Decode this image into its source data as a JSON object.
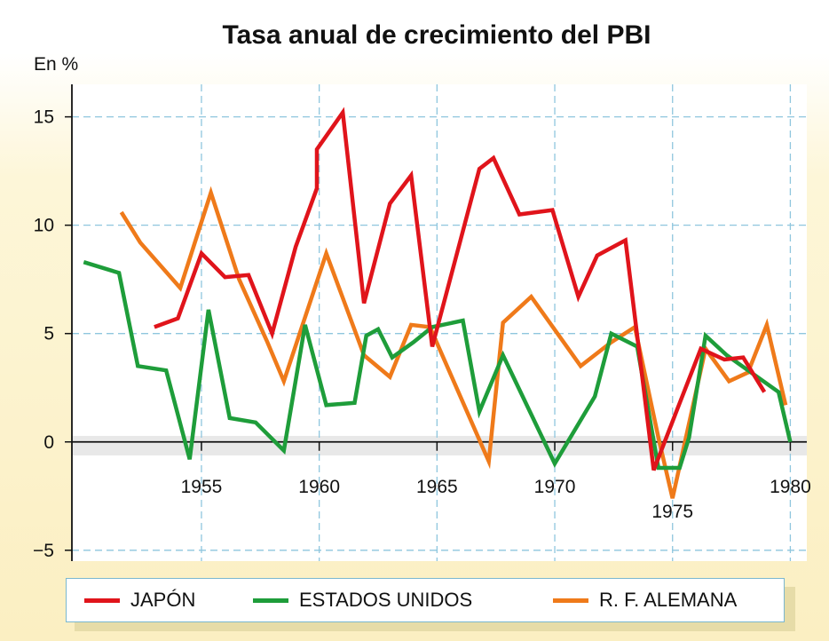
{
  "chart_data": {
    "type": "line",
    "title": "Tasa anual de crecimiento del PBI",
    "ylabel": "En %",
    "xlabel": "",
    "xlim": [
      1949.5,
      1980.7
    ],
    "ylim": [
      -5.5,
      16.5
    ],
    "x_ticks": [
      1955,
      1960,
      1965,
      1970,
      1975,
      1980
    ],
    "y_ticks": [
      -5,
      0,
      5,
      10,
      15
    ],
    "grid": true,
    "legend_position": "bottom",
    "series": [
      {
        "name": "JAPÓN",
        "color": "#e0141b",
        "points": [
          [
            1953,
            5.3
          ],
          [
            1954,
            5.7
          ],
          [
            1955,
            8.7
          ],
          [
            1956,
            7.6
          ],
          [
            1957,
            7.7
          ],
          [
            1958,
            5.0
          ],
          [
            1959,
            9.0
          ],
          [
            1959.9,
            11.7
          ],
          [
            1959.9,
            13.5
          ],
          [
            1961,
            15.2
          ],
          [
            1961.9,
            6.4
          ],
          [
            1963,
            11.0
          ],
          [
            1963.9,
            12.3
          ],
          [
            1964.8,
            4.4
          ],
          [
            1966.8,
            12.6
          ],
          [
            1967.4,
            13.1
          ],
          [
            1968.5,
            10.5
          ],
          [
            1969.9,
            10.7
          ],
          [
            1971,
            6.7
          ],
          [
            1971.8,
            8.6
          ],
          [
            1973,
            9.3
          ],
          [
            1974.2,
            -1.3
          ],
          [
            1975.2,
            1.5
          ],
          [
            1976.2,
            4.3
          ],
          [
            1977.2,
            3.8
          ],
          [
            1978,
            3.9
          ],
          [
            1978.9,
            2.3
          ]
        ]
      },
      {
        "name": "ESTADOS UNIDOS",
        "color": "#1e9d3a",
        "points": [
          [
            1950,
            8.3
          ],
          [
            1951.5,
            7.8
          ],
          [
            1952.3,
            3.5
          ],
          [
            1953.5,
            3.3
          ],
          [
            1954.5,
            -0.8
          ],
          [
            1955.3,
            6.1
          ],
          [
            1956.2,
            1.1
          ],
          [
            1957.3,
            0.9
          ],
          [
            1958.5,
            -0.4
          ],
          [
            1959.4,
            5.4
          ],
          [
            1960.3,
            1.7
          ],
          [
            1961.5,
            1.8
          ],
          [
            1962,
            4.9
          ],
          [
            1962.5,
            5.2
          ],
          [
            1963.1,
            3.9
          ],
          [
            1964,
            4.6
          ],
          [
            1964.8,
            5.3
          ],
          [
            1966.1,
            5.6
          ],
          [
            1966.8,
            1.4
          ],
          [
            1967.8,
            4.0
          ],
          [
            1970,
            -1.0
          ],
          [
            1971.7,
            2.1
          ],
          [
            1972.4,
            5.0
          ],
          [
            1973.5,
            4.4
          ],
          [
            1974.4,
            -1.2
          ],
          [
            1975.3,
            -1.2
          ],
          [
            1975.7,
            0.2
          ],
          [
            1976.4,
            4.9
          ],
          [
            1977.3,
            4.0
          ],
          [
            1979.5,
            2.3
          ],
          [
            1980,
            0.0
          ]
        ]
      },
      {
        "name": "R. F. ALEMANA",
        "color": "#ef7a1a",
        "points": [
          [
            1951.6,
            10.6
          ],
          [
            1952.4,
            9.2
          ],
          [
            1954.1,
            7.1
          ],
          [
            1955.4,
            11.5
          ],
          [
            1956.6,
            7.5
          ],
          [
            1957.8,
            4.6
          ],
          [
            1958.5,
            2.8
          ],
          [
            1960.3,
            8.7
          ],
          [
            1961.9,
            4.0
          ],
          [
            1963,
            3.0
          ],
          [
            1963.9,
            5.4
          ],
          [
            1964.7,
            5.3
          ],
          [
            1967.2,
            -0.9
          ],
          [
            1967.8,
            5.5
          ],
          [
            1969,
            6.7
          ],
          [
            1971.1,
            3.5
          ],
          [
            1972.4,
            4.6
          ],
          [
            1973.4,
            5.3
          ],
          [
            1974.4,
            0.2
          ],
          [
            1975,
            -2.6
          ],
          [
            1976.4,
            4.3
          ],
          [
            1977.4,
            2.8
          ],
          [
            1978.2,
            3.2
          ],
          [
            1979,
            5.4
          ],
          [
            1979.8,
            1.7
          ]
        ]
      }
    ]
  }
}
